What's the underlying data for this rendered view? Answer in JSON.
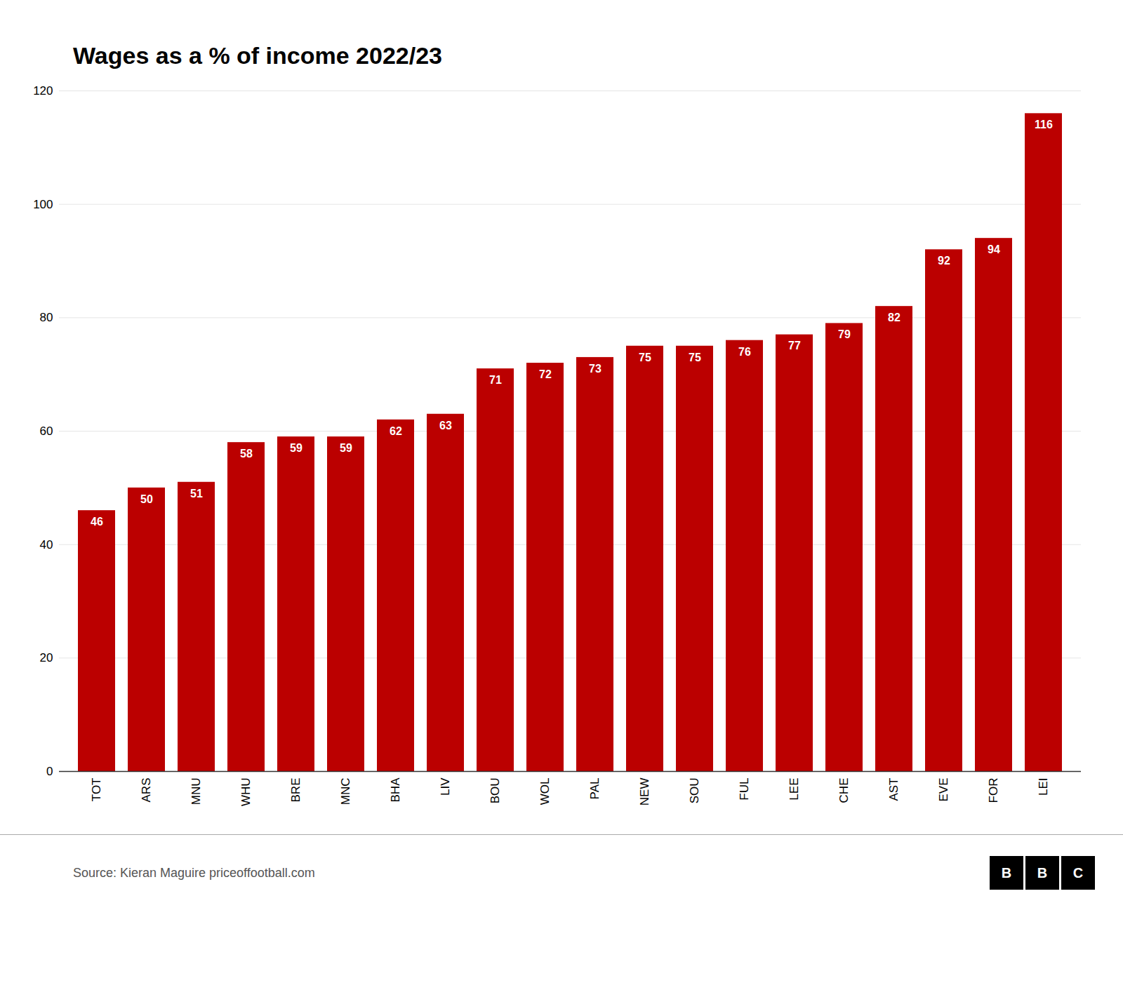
{
  "chart_data": {
    "type": "bar",
    "title": "Wages as a % of income 2022/23",
    "categories": [
      "TOT",
      "ARS",
      "MNU",
      "WHU",
      "BRE",
      "MNC",
      "BHA",
      "LIV",
      "BOU",
      "WOL",
      "PAL",
      "NEW",
      "SOU",
      "FUL",
      "LEE",
      "CHE",
      "AST",
      "EVE",
      "FOR",
      "LEI"
    ],
    "values": [
      46,
      50,
      51,
      58,
      59,
      59,
      62,
      63,
      71,
      72,
      73,
      75,
      75,
      76,
      77,
      79,
      82,
      92,
      94,
      116
    ],
    "color": "#bb0000",
    "ylim": [
      0,
      120
    ],
    "yticks": [
      0,
      20,
      40,
      60,
      80,
      100,
      120
    ],
    "grid": true,
    "data_labels": true,
    "annotations": [
      "Source: Kieran Maguire priceoffootball.com",
      "BBC"
    ]
  }
}
